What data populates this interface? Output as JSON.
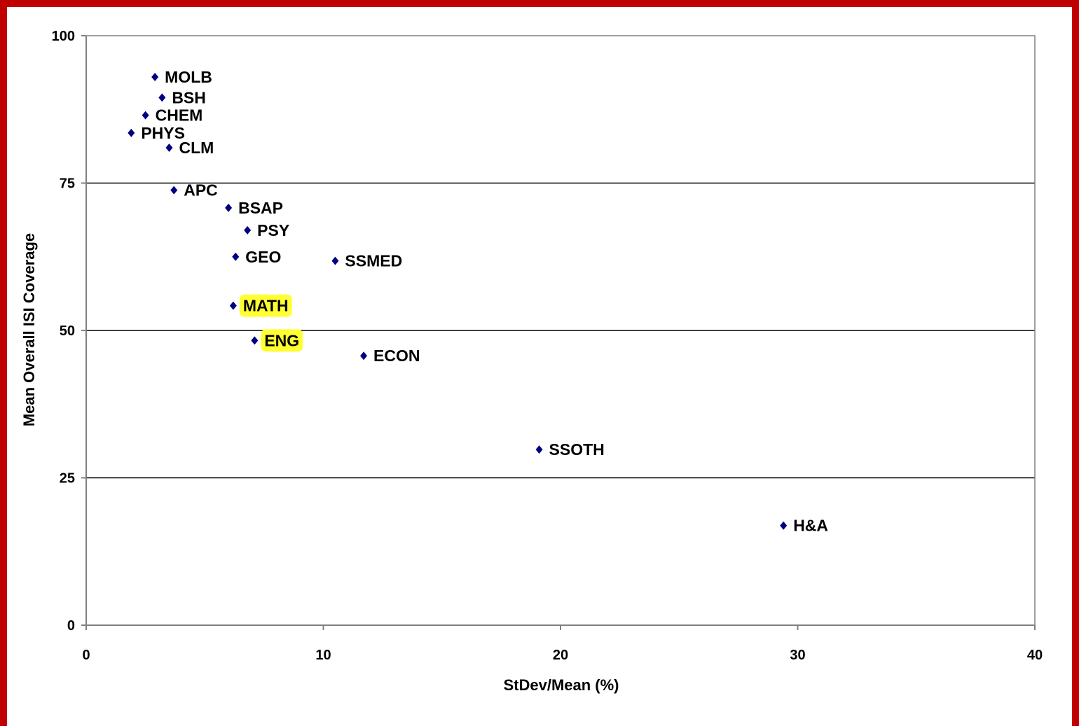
{
  "colors": {
    "frame": "#c00000",
    "marker": "#000080",
    "highlight": "#ffff33",
    "grid": "#000000",
    "axis": "#808080"
  },
  "chart_data": {
    "type": "scatter",
    "title": "",
    "xlabel": "StDev/Mean (%)",
    "ylabel": "Mean Overall ISI Coverage",
    "xlim": [
      0,
      40
    ],
    "ylim": [
      0,
      100
    ],
    "xticks": [
      0,
      10,
      20,
      30,
      40
    ],
    "yticks": [
      0,
      25,
      50,
      75,
      100
    ],
    "gridlines_y": [
      25,
      50,
      75
    ],
    "legend": "none",
    "points": [
      {
        "label": "MOLB",
        "x": 2.9,
        "y": 93.0,
        "highlight": false
      },
      {
        "label": "BSH",
        "x": 3.2,
        "y": 89.5,
        "highlight": false
      },
      {
        "label": "CHEM",
        "x": 2.5,
        "y": 86.5,
        "highlight": false
      },
      {
        "label": "PHYS",
        "x": 1.9,
        "y": 83.5,
        "highlight": false
      },
      {
        "label": "CLM",
        "x": 3.5,
        "y": 81.0,
        "highlight": false
      },
      {
        "label": "APC",
        "x": 3.7,
        "y": 73.8,
        "highlight": false
      },
      {
        "label": "BSAP",
        "x": 6.0,
        "y": 70.8,
        "highlight": false
      },
      {
        "label": "PSY",
        "x": 6.8,
        "y": 67.0,
        "highlight": false
      },
      {
        "label": "GEO",
        "x": 6.3,
        "y": 62.5,
        "highlight": false
      },
      {
        "label": "SSMED",
        "x": 10.5,
        "y": 61.8,
        "highlight": false
      },
      {
        "label": "MATH",
        "x": 6.2,
        "y": 54.2,
        "highlight": true
      },
      {
        "label": "ENG",
        "x": 7.1,
        "y": 48.3,
        "highlight": true
      },
      {
        "label": "ECON",
        "x": 11.7,
        "y": 45.7,
        "highlight": false
      },
      {
        "label": "SSOTH",
        "x": 19.1,
        "y": 29.8,
        "highlight": false
      },
      {
        "label": "H&A",
        "x": 29.4,
        "y": 16.9,
        "highlight": false
      }
    ]
  }
}
